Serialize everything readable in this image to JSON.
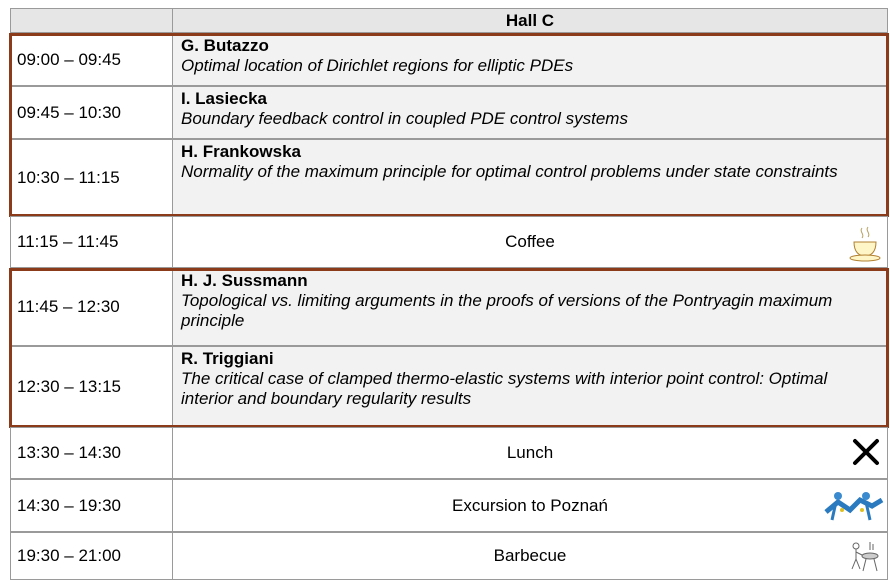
{
  "header": {
    "hall": "Hall C"
  },
  "rows": [
    {
      "time": "09:00 – 09:45",
      "speaker": "G. Butazzo",
      "title": "Optimal location of Dirichlet regions for elliptic PDEs"
    },
    {
      "time": "09:45 – 10:30",
      "speaker": "I. Lasiecka",
      "title": "Boundary feedback control in coupled PDE control systems"
    },
    {
      "time": "10:30 – 11:15",
      "speaker": "H. Frankowska",
      "title": "Normality of the maximum principle for optimal control problems under state constraints"
    },
    {
      "time": "11:15 – 11:45",
      "event": "Coffee"
    },
    {
      "time": "11:45 – 12:30",
      "speaker": "H. J. Sussmann",
      "title": "Topological vs. limiting arguments in the proofs of versions of the Pontryagin maximum principle"
    },
    {
      "time": "12:30 – 13:15",
      "speaker": "R. Triggiani",
      "title": "The critical case of clamped thermo-elastic systems with interior point control: Optimal interior and boundary regularity results"
    },
    {
      "time": "13:30 – 14:30",
      "event": "Lunch"
    },
    {
      "time": "14:30 – 19:30",
      "event": "Excursion to Poznań"
    },
    {
      "time": "19:30 – 21:00",
      "event": "Barbecue"
    }
  ]
}
